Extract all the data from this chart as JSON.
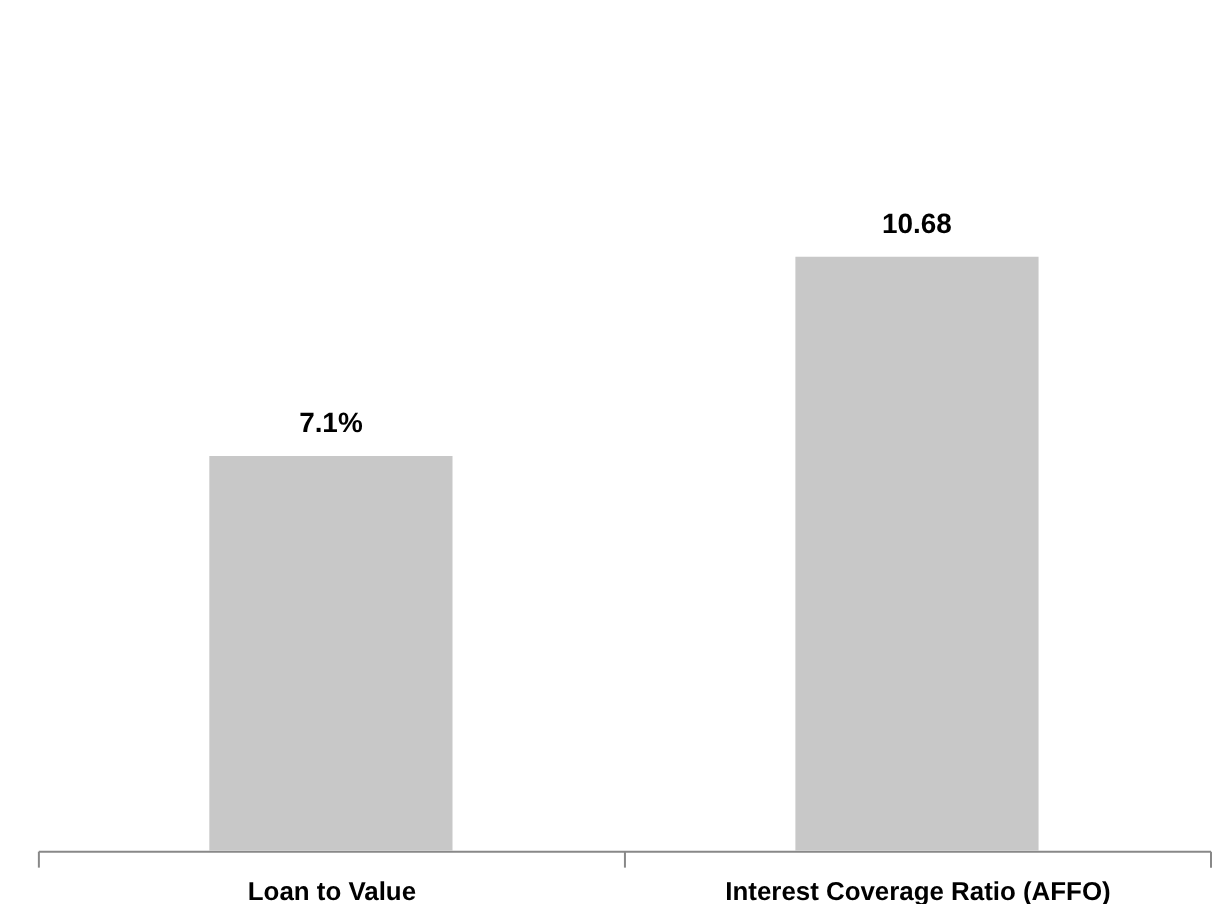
{
  "chart_data": {
    "type": "bar",
    "categories": [
      "Loan to Value",
      "Interest Coverage Ratio (AFFO)"
    ],
    "values": [
      7.1,
      10.68
    ],
    "value_labels": [
      "7.1%",
      "10.68"
    ],
    "color": "#c8c8c8",
    "grid": false,
    "legend": false
  }
}
